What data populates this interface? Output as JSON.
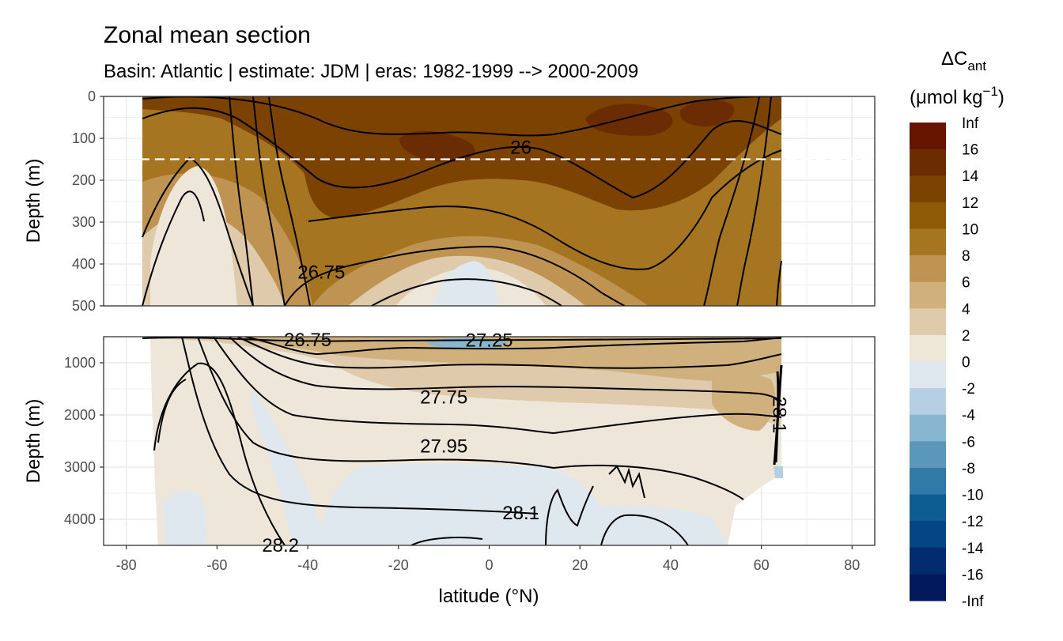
{
  "chart_data": {
    "type": "heatmap",
    "title": "Zonal mean section",
    "subtitle": "Basin: Atlantic | estimate: JDM  | eras: 1982-1999 --> 2000-2009",
    "xlabel": "latitude (°N)",
    "ylabel": "Depth (m)",
    "xlim": [
      -85,
      85
    ],
    "x_ticks": [
      -80,
      -60,
      -40,
      -20,
      0,
      20,
      40,
      60,
      80
    ],
    "x_tick_labels": [
      "-80",
      "-60",
      "-40",
      "-20",
      "0",
      "20",
      "40",
      "60",
      "80"
    ],
    "data_lat_range": [
      -77,
      65
    ],
    "panels": [
      {
        "name": "upper",
        "ylim": [
          500,
          0
        ],
        "y_ticks": [
          0,
          100,
          200,
          300,
          400,
          500
        ],
        "y_tick_labels": [
          "0",
          "100",
          "200",
          "300",
          "400",
          "500"
        ],
        "reference_line_depth": 150,
        "contour_labels": [
          {
            "text": "26",
            "lat": 7,
            "depth": 122
          },
          {
            "text": "26.75",
            "lat": -37,
            "depth": 420
          }
        ]
      },
      {
        "name": "lower",
        "ylim": [
          4500,
          500
        ],
        "y_ticks": [
          1000,
          2000,
          3000,
          4000
        ],
        "y_tick_labels": [
          "1000",
          "2000",
          "3000",
          "4000"
        ],
        "contour_labels": [
          {
            "text": "26.75",
            "lat": -40,
            "depth": 560
          },
          {
            "text": "27.25",
            "lat": 0,
            "depth": 570
          },
          {
            "text": "27.75",
            "lat": -10,
            "depth": 1660
          },
          {
            "text": "27.95",
            "lat": -10,
            "depth": 2600
          },
          {
            "text": "28.1",
            "lat": 7,
            "depth": 3880
          },
          {
            "text": "28.2",
            "lat": -46,
            "depth": 4500
          },
          {
            "text": "28.1",
            "lat": 64,
            "depth": 2000
          }
        ]
      }
    ],
    "legend": {
      "title_main": "ΔC",
      "title_sub": "ant",
      "units_text": "(μmol kg",
      "units_exp": "−1",
      "units_close": ")",
      "bins": [
        {
          "label": "Inf",
          "color": "#661400"
        },
        {
          "label": "16",
          "color": "#6b2c04"
        },
        {
          "label": "14",
          "color": "#7c4202"
        },
        {
          "label": "12",
          "color": "#8e5a06"
        },
        {
          "label": "10",
          "color": "#a67522"
        },
        {
          "label": "8",
          "color": "#bf9452"
        },
        {
          "label": "6",
          "color": "#d0b17e"
        },
        {
          "label": "4",
          "color": "#dfcbab"
        },
        {
          "label": "2",
          "color": "#ede6d9"
        },
        {
          "label": "0",
          "color": "#dfe8ee"
        },
        {
          "label": "-2",
          "color": "#b5d0e2"
        },
        {
          "label": "-4",
          "color": "#88b5cf"
        },
        {
          "label": "-6",
          "color": "#5a97b9"
        },
        {
          "label": "-8",
          "color": "#2f7aa6"
        },
        {
          "label": "-10",
          "color": "#0d5d93"
        },
        {
          "label": "-12",
          "color": "#044584"
        },
        {
          "label": "-14",
          "color": "#022c70"
        },
        {
          "label": "-16",
          "color": "#02195e"
        },
        {
          "label": "-Inf",
          "color": "#02195e"
        }
      ]
    }
  }
}
